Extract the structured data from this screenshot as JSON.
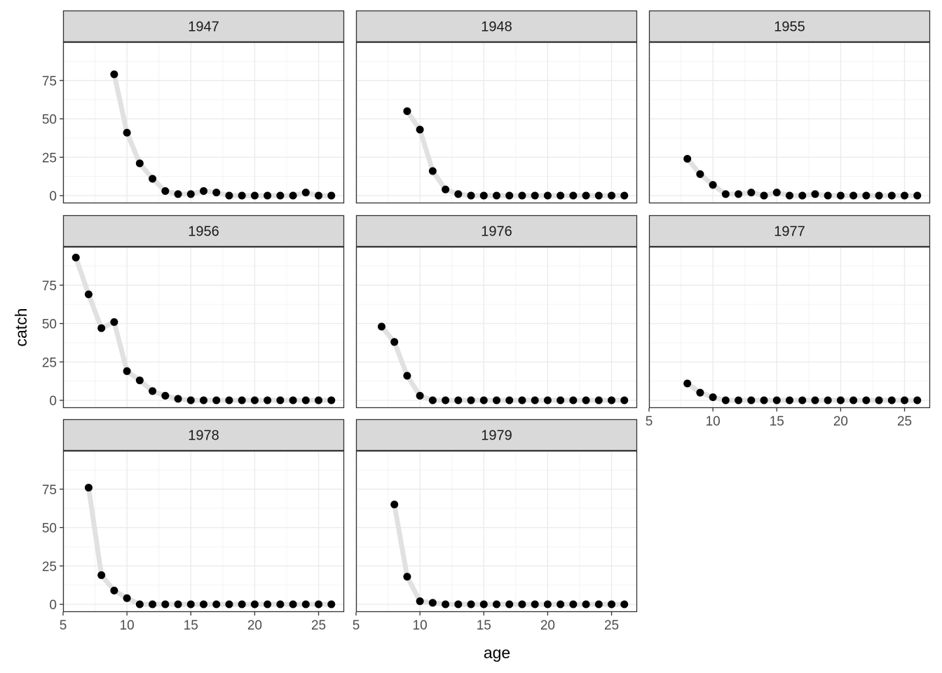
{
  "chart_data": {
    "type": "line",
    "layout": "facet_wrap",
    "xlabel": "age",
    "ylabel": "catch",
    "xlim": [
      5,
      27
    ],
    "ylim": [
      -5,
      100
    ],
    "xticks": [
      5,
      10,
      15,
      20,
      25
    ],
    "yticks": [
      0,
      25,
      50,
      75
    ],
    "grid": true,
    "legend": "none",
    "colors": {
      "line": "#e1e1e1",
      "point": "#000000",
      "strip_bg": "#d9d9d9",
      "grid_major": "#ebebeb",
      "grid_minor": "#f3f3f3",
      "border": "#333333",
      "tick_text": "#4d4d4d"
    },
    "panels": [
      {
        "label": "1947",
        "x": [
          9,
          10,
          11,
          12,
          13,
          14,
          15,
          16,
          17,
          18,
          19,
          20,
          21,
          22,
          23,
          24,
          25,
          26
        ],
        "y": [
          79,
          41,
          21,
          11,
          3,
          1,
          1,
          3,
          2,
          0,
          0,
          0,
          0,
          0,
          0,
          2,
          0,
          0
        ]
      },
      {
        "label": "1948",
        "x": [
          9,
          10,
          11,
          12,
          13,
          14,
          15,
          16,
          17,
          18,
          19,
          20,
          21,
          22,
          23,
          24,
          25,
          26
        ],
        "y": [
          55,
          43,
          16,
          4,
          1,
          0,
          0,
          0,
          0,
          0,
          0,
          0,
          0,
          0,
          0,
          0,
          0,
          0
        ]
      },
      {
        "label": "1955",
        "x": [
          8,
          9,
          10,
          11,
          12,
          13,
          14,
          15,
          16,
          17,
          18,
          19,
          20,
          21,
          22,
          23,
          24,
          25,
          26
        ],
        "y": [
          24,
          14,
          7,
          1,
          1,
          2,
          0,
          2,
          0,
          0,
          1,
          0,
          0,
          0,
          0,
          0,
          0,
          0,
          0
        ]
      },
      {
        "label": "1956",
        "x": [
          6,
          7,
          8,
          9,
          10,
          11,
          12,
          13,
          14,
          15,
          16,
          17,
          18,
          19,
          20,
          21,
          22,
          23,
          24,
          25,
          26
        ],
        "y": [
          93,
          69,
          47,
          51,
          19,
          13,
          6,
          3,
          1,
          0,
          0,
          0,
          0,
          0,
          0,
          0,
          0,
          0,
          0,
          0,
          0
        ]
      },
      {
        "label": "1976",
        "x": [
          7,
          8,
          9,
          10,
          11,
          12,
          13,
          14,
          15,
          16,
          17,
          18,
          19,
          20,
          21,
          22,
          23,
          24,
          25,
          26
        ],
        "y": [
          48,
          38,
          16,
          3,
          0,
          0,
          0,
          0,
          0,
          0,
          0,
          0,
          0,
          0,
          0,
          0,
          0,
          0,
          0,
          0
        ]
      },
      {
        "label": "1977",
        "x": [
          8,
          9,
          10,
          11,
          12,
          13,
          14,
          15,
          16,
          17,
          18,
          19,
          20,
          21,
          22,
          23,
          24,
          25,
          26
        ],
        "y": [
          11,
          5,
          2,
          0,
          0,
          0,
          0,
          0,
          0,
          0,
          0,
          0,
          0,
          0,
          0,
          0,
          0,
          0,
          0
        ]
      },
      {
        "label": "1978",
        "x": [
          7,
          8,
          9,
          10,
          11,
          12,
          13,
          14,
          15,
          16,
          17,
          18,
          19,
          20,
          21,
          22,
          23,
          24,
          25,
          26
        ],
        "y": [
          76,
          19,
          9,
          4,
          0,
          0,
          0,
          0,
          0,
          0,
          0,
          0,
          0,
          0,
          0,
          0,
          0,
          0,
          0,
          0
        ]
      },
      {
        "label": "1979",
        "x": [
          8,
          9,
          10,
          11,
          12,
          13,
          14,
          15,
          16,
          17,
          18,
          19,
          20,
          21,
          22,
          23,
          24,
          25,
          26
        ],
        "y": [
          65,
          18,
          2,
          1,
          0,
          0,
          0,
          0,
          0,
          0,
          0,
          0,
          0,
          0,
          0,
          0,
          0,
          0,
          0
        ]
      }
    ]
  }
}
